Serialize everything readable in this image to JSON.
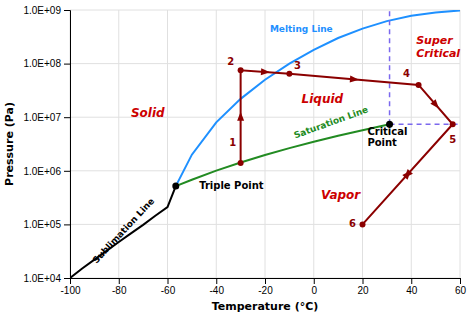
{
  "chart_data": {
    "type": "line",
    "xlabel": "Temperature (°C)",
    "ylabel": "Pressure (Pa)",
    "log": "y",
    "grid": true,
    "xlim": [
      -100,
      60
    ],
    "ylim": [
      10000,
      1000000000
    ],
    "xticks": [
      -100,
      -80,
      -60,
      -40,
      -20,
      0,
      20,
      40,
      60
    ],
    "yticks": [
      {
        "value": 10000,
        "label": "1.0E+04"
      },
      {
        "value": 100000,
        "label": "1.0E+05"
      },
      {
        "value": 1000000,
        "label": "1.0E+06"
      },
      {
        "value": 10000000,
        "label": "1.0E+07"
      },
      {
        "value": 100000000,
        "label": "1.0E+08"
      },
      {
        "value": 1000000000,
        "label": "1.0E+09"
      }
    ],
    "series": [
      {
        "type": "line",
        "color": "#000000",
        "line_style": "solid",
        "x": [
          -100,
          -95,
          -90,
          -85,
          -80,
          -75,
          -70,
          -65,
          -60,
          -56.6
        ],
        "values": [
          10000.0,
          15000.0,
          22000.0,
          32000.0,
          47000.0,
          68000.0,
          98000.0,
          145000.0,
          210000.0,
          518000.0
        ]
      },
      {
        "type": "line",
        "color": "#1E90FF",
        "line_style": "solid",
        "x": [
          -56.6,
          -50,
          -40,
          -30,
          -20,
          -10,
          0,
          10,
          20,
          30,
          40,
          50,
          60
        ],
        "values": [
          518000.0,
          2000000.0,
          8000000.0,
          22000000.0,
          50000000.0,
          100000000.0,
          180000000.0,
          300000000.0,
          450000000.0,
          620000000.0,
          780000000.0,
          900000000.0,
          980000000.0
        ]
      },
      {
        "type": "line",
        "color": "#228B22",
        "line_style": "solid",
        "x": [
          -56.6,
          -50,
          -40,
          -30,
          -20,
          -10,
          0,
          10,
          20,
          31.1
        ],
        "values": [
          518000.0,
          680000.0,
          1010000.0,
          1430000.0,
          1970000.0,
          2650000.0,
          3480000.0,
          4500000.0,
          5730000.0,
          7380000.0
        ]
      },
      {
        "type": "line",
        "color": "#7B68EE",
        "line_style": "dashed",
        "x": [
          31.1,
          31.1
        ],
        "values": [
          7380000.0,
          1000000000.0
        ]
      },
      {
        "type": "line",
        "color": "#7B68EE",
        "line_style": "dashed",
        "x": [
          31.1,
          60
        ],
        "values": [
          7380000.0,
          7380000.0
        ]
      },
      {
        "type": "line",
        "color": "#8B0000",
        "line_style": "arrow",
        "marker": "circle",
        "x": [
          -30,
          -30,
          -10,
          43,
          57,
          20,
          57
        ],
        "values": [
          1400000.0,
          75000000.0,
          65000000.0,
          40000000.0,
          7380000.0,
          100000.0,
          7380000.0
        ],
        "labels": [
          "1",
          "2",
          "3",
          "4",
          "5",
          "6",
          null
        ]
      },
      {
        "type": "scatter",
        "color": "#000000",
        "marker": "circle",
        "x": [
          -56.6,
          31.1
        ],
        "values": [
          518000.0,
          7380000.0
        ]
      }
    ],
    "annotations": [
      {
        "text": "Sublimation Line",
        "x": -90,
        "y": 20000.0,
        "color": "#000000"
      },
      {
        "text": "Melting Line",
        "x": -18,
        "y": 450000000.0,
        "color": "#1E90FF"
      },
      {
        "text": "Saturation Line",
        "x": -8,
        "y": 4500000.0,
        "color": "#228B22"
      },
      {
        "text": "Solid",
        "x": -75,
        "y": 12000000.0,
        "color": "#CC0000"
      },
      {
        "text": "Liquid",
        "x": -5,
        "y": 22000000.0,
        "color": "#CC0000"
      },
      {
        "text": "Vapor",
        "x": 3,
        "y": 350000.0,
        "color": "#CC0000"
      },
      {
        "text": "Triple Point",
        "x": -47,
        "y": 518000.0,
        "color": "#000000"
      },
      {
        "text": "Critical\nPoint",
        "x": 22,
        "y": 4200000.0,
        "color": "#000000"
      },
      {
        "text": "Super\nCritical",
        "x": 42,
        "y": 200000000.0,
        "color": "#CC0000"
      }
    ]
  }
}
